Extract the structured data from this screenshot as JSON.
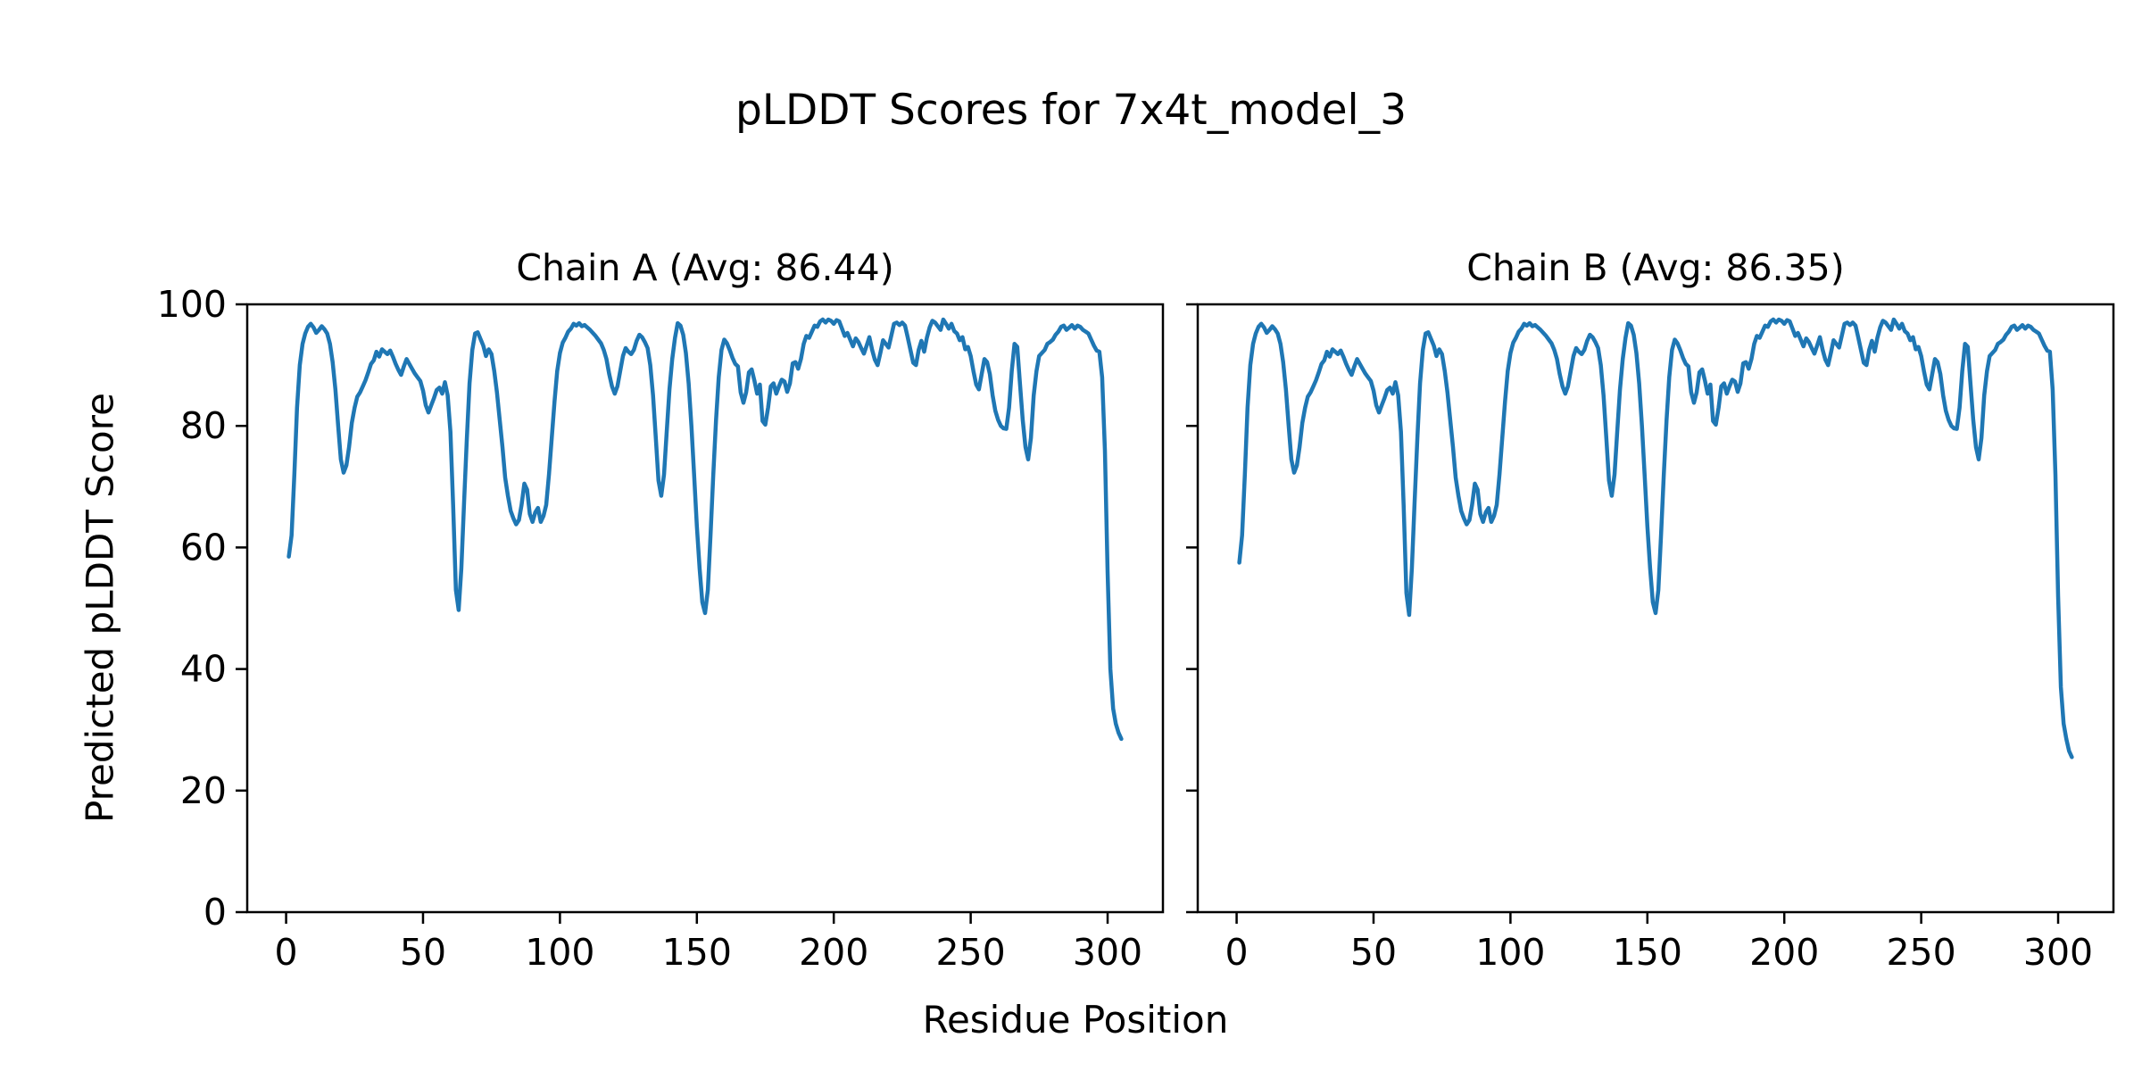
{
  "figure": {
    "title": "pLDDT Scores for 7x4t_model_3",
    "xlabel": "Residue Position",
    "ylabel": "Predicted pLDDT Score",
    "background_color": "#ffffff",
    "line_color": "#1f77b4",
    "text_color": "#000000"
  },
  "chart_data": [
    {
      "type": "line",
      "title": "Chain A (Avg: 86.44)",
      "chain": "A",
      "average_plddt": 86.44,
      "xlabel": "Residue Position",
      "ylabel": "Predicted pLDDT Score",
      "xticks": [
        0,
        50,
        100,
        150,
        200,
        250,
        300
      ],
      "yticks": [
        0,
        20,
        40,
        60,
        80,
        100
      ],
      "xlim": [
        -14.2,
        320.2
      ],
      "ylim": [
        0,
        100
      ],
      "grid": false,
      "x_start": 1,
      "values": [
        58.5,
        62,
        72,
        83,
        90,
        93.5,
        95.2,
        96.3,
        96.8,
        96.2,
        95.3,
        95.8,
        96.4,
        95.9,
        95.2,
        93.5,
        90.5,
        86,
        80,
        74.5,
        72.3,
        73.5,
        76.5,
        80.5,
        83,
        84.8,
        85.5,
        86.5,
        87.5,
        88.8,
        90.2,
        90.8,
        92.2,
        91.4,
        92.6,
        92.2,
        91.8,
        92.4,
        91.4,
        90.2,
        89.2,
        88.4,
        89.8,
        91,
        90.2,
        89.4,
        88.6,
        88,
        87.4,
        85.8,
        83.4,
        82.2,
        83.4,
        84.6,
        85.9,
        86.3,
        85.3,
        87.2,
        85,
        79,
        67,
        53,
        49.7,
        56.5,
        67.5,
        78,
        87,
        92.5,
        95.2,
        95.4,
        94.3,
        93.2,
        91.5,
        92.6,
        91.8,
        89,
        85.5,
        81,
        76.5,
        71.5,
        68.5,
        66,
        64.8,
        63.8,
        64.5,
        67,
        70.5,
        69.5,
        65.5,
        64.2,
        65.8,
        66.5,
        64.2,
        65.2,
        67,
        72,
        78,
        84,
        89,
        92,
        93.7,
        94.5,
        95.5,
        96,
        96.8,
        96.5,
        96.9,
        96.4,
        96.6,
        96.2,
        95.8,
        95.3,
        94.8,
        94.2,
        93.6,
        92.5,
        91,
        88.5,
        86.5,
        85.3,
        86.5,
        89,
        91.5,
        92.8,
        92.2,
        91.8,
        92.5,
        94,
        95,
        94.6,
        93.8,
        92.8,
        90,
        85,
        78,
        71,
        68.5,
        72,
        79,
        86,
        91,
        94.5,
        96.9,
        96.5,
        95,
        92,
        87,
        80,
        72,
        63.5,
        56.5,
        51,
        49.2,
        53,
        62,
        72,
        81,
        88,
        92.5,
        94.2,
        93.6,
        92.5,
        91.2,
        90.2,
        89.8,
        85.5,
        83.8,
        85.5,
        88.8,
        89.3,
        87.5,
        85.3,
        86.8,
        80.8,
        80.2,
        83,
        86.5,
        87,
        85.3,
        86.5,
        87.6,
        87.3,
        85.6,
        87,
        90.3,
        90.5,
        89.4,
        91,
        93.5,
        94.8,
        94.5,
        95.5,
        96.5,
        96.3,
        97.2,
        97.5,
        97,
        97.5,
        97.3,
        96.8,
        97.4,
        97.2,
        96,
        94.8,
        95.3,
        94.2,
        93.1,
        94.4,
        93.8,
        92.8,
        91.9,
        93.2,
        94.6,
        92.5,
        90.9,
        90,
        92,
        94.1,
        93.5,
        92.9,
        94.8,
        96.8,
        97,
        96.6,
        97,
        96.5,
        94.6,
        92.5,
        90.4,
        90,
        92.5,
        94,
        92.2,
        94.5,
        96.2,
        97.3,
        97,
        96.4,
        95.8,
        97.5,
        96.8,
        96,
        96.8,
        95.6,
        95.2,
        94.1,
        94.6,
        92.6,
        93,
        91.5,
        89,
        86.8,
        86,
        88.5,
        91,
        90.5,
        88.5,
        85,
        82.5,
        81,
        80,
        79.6,
        79.5,
        83,
        89,
        93.5,
        93,
        87,
        81,
        76.5,
        74.5,
        78,
        85,
        89,
        91.5,
        92,
        92.5,
        93.5,
        93.8,
        94.2,
        95,
        95.5,
        96.3,
        96.5,
        95.8,
        96.2,
        96.6,
        96,
        96.5,
        96.3,
        95.8,
        95.5,
        95.2,
        94.2,
        93.2,
        92.4,
        92.2,
        88,
        76,
        56,
        40,
        33.5,
        31,
        29.5,
        28.5
      ]
    },
    {
      "type": "line",
      "title": "Chain B (Avg: 86.35)",
      "chain": "B",
      "average_plddt": 86.35,
      "xlabel": "Residue Position",
      "ylabel": "Predicted pLDDT Score",
      "xticks": [
        0,
        50,
        100,
        150,
        200,
        250,
        300
      ],
      "yticks": [
        0,
        20,
        40,
        60,
        80,
        100
      ],
      "xlim": [
        -14.2,
        320.2
      ],
      "ylim": [
        0,
        100
      ],
      "grid": false,
      "x_start": 1,
      "values": [
        57.5,
        62,
        72,
        83,
        90,
        93.5,
        95.2,
        96.3,
        96.8,
        96.2,
        95.3,
        95.8,
        96.4,
        95.9,
        95.2,
        93.5,
        90.5,
        86,
        80,
        74.5,
        72.3,
        73.5,
        76.5,
        80.5,
        83,
        84.8,
        85.5,
        86.5,
        87.5,
        88.8,
        90.2,
        90.8,
        92.2,
        91.4,
        92.6,
        92.2,
        91.8,
        92.4,
        91.4,
        90.2,
        89.2,
        88.4,
        89.8,
        91,
        90.2,
        89.4,
        88.6,
        88,
        87.4,
        85.8,
        83.4,
        82.2,
        83.4,
        84.6,
        85.9,
        86.3,
        85.3,
        87.2,
        85,
        79,
        67,
        52.5,
        48.9,
        56.5,
        67.5,
        78,
        87,
        92.5,
        95.2,
        95.4,
        94.3,
        93.2,
        91.5,
        92.6,
        91.8,
        89,
        85.5,
        81,
        76.5,
        71.5,
        68.5,
        66,
        64.8,
        63.8,
        64.5,
        67,
        70.5,
        69.5,
        65.5,
        64.2,
        65.8,
        66.5,
        64.2,
        65.2,
        67,
        72,
        78,
        84,
        89,
        92,
        93.7,
        94.5,
        95.5,
        96,
        96.8,
        96.5,
        96.9,
        96.4,
        96.6,
        96.2,
        95.8,
        95.3,
        94.8,
        94.2,
        93.6,
        92.5,
        91,
        88.5,
        86.5,
        85.3,
        86.5,
        89,
        91.5,
        92.8,
        92.2,
        91.8,
        92.5,
        94,
        95,
        94.6,
        93.8,
        92.8,
        90,
        85,
        78,
        71,
        68.5,
        72,
        79,
        86,
        91,
        94.5,
        96.9,
        96.5,
        95,
        92,
        87,
        80,
        72,
        63.5,
        56.5,
        51,
        49.2,
        53,
        62,
        72,
        81,
        88,
        92.5,
        94.2,
        93.6,
        92.5,
        91.2,
        90.2,
        89.8,
        85.5,
        83.8,
        85.5,
        88.8,
        89.3,
        87.5,
        85.3,
        86.8,
        80.8,
        80.2,
        83,
        86.5,
        87,
        85.3,
        86.5,
        87.6,
        87.3,
        85.6,
        87,
        90.3,
        90.5,
        89.4,
        91,
        93.5,
        94.8,
        94.5,
        95.5,
        96.5,
        96.3,
        97.2,
        97.5,
        97,
        97.5,
        97.3,
        96.8,
        97.4,
        97.2,
        96,
        94.8,
        95.3,
        94.2,
        93.1,
        94.4,
        93.8,
        92.8,
        91.9,
        93.2,
        94.6,
        92.5,
        90.9,
        90,
        92,
        94.1,
        93.5,
        92.9,
        94.8,
        96.8,
        97,
        96.6,
        97,
        96.5,
        94.6,
        92.5,
        90.4,
        90,
        92.5,
        94,
        92.2,
        94.5,
        96.2,
        97.3,
        97,
        96.4,
        95.8,
        97.5,
        96.8,
        96,
        96.8,
        95.6,
        95.2,
        94.1,
        94.6,
        92.6,
        93,
        91.5,
        89,
        86.8,
        86,
        88.5,
        91,
        90.5,
        88.5,
        85,
        82.5,
        81,
        80,
        79.6,
        79.5,
        83,
        89,
        93.5,
        93,
        87,
        81,
        76.5,
        74.5,
        78,
        85,
        89,
        91.5,
        92,
        92.5,
        93.5,
        93.8,
        94.2,
        95,
        95.5,
        96.3,
        96.5,
        95.8,
        96.2,
        96.6,
        96,
        96.5,
        96.3,
        95.8,
        95.5,
        95.2,
        94.2,
        93.2,
        92.4,
        92.2,
        86,
        72,
        52,
        37,
        31,
        28.5,
        26.5,
        25.5
      ]
    }
  ]
}
